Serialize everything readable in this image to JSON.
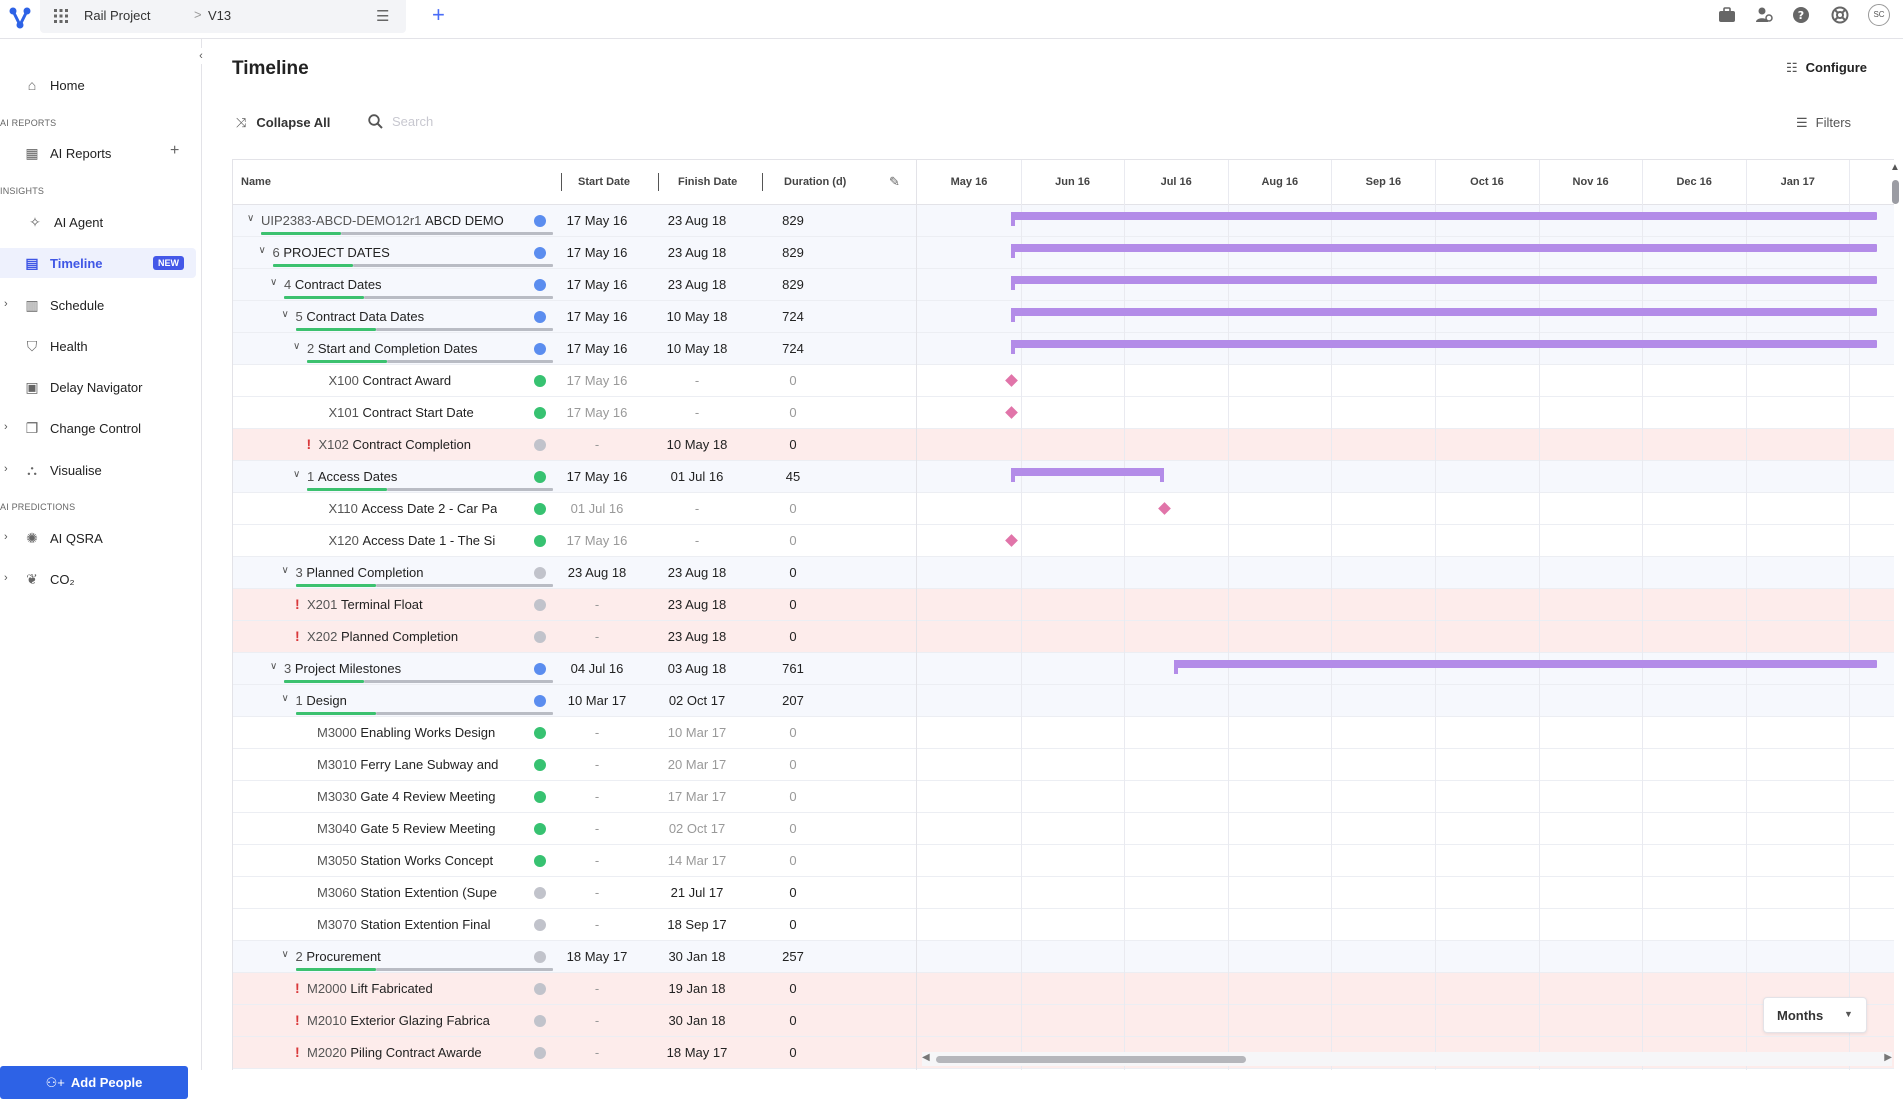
{
  "topbar": {
    "project_name": "Rail Project",
    "breadcrumb_sep": ">",
    "version": "V13",
    "avatar_initials": "SC",
    "icons": [
      "briefcase-icon",
      "user-settings-icon",
      "help-icon",
      "support-icon"
    ]
  },
  "sidebar": {
    "items": [
      {
        "label": "Home",
        "icon": "home-icon"
      },
      {
        "section": "AI REPORTS"
      },
      {
        "label": "AI Reports",
        "icon": "report-icon"
      },
      {
        "section": "INSIGHTS"
      },
      {
        "label": "AI Agent",
        "icon": "agent-icon"
      },
      {
        "label": "Timeline",
        "icon": "timeline-icon",
        "badge": "NEW",
        "active": true
      },
      {
        "label": "Schedule",
        "icon": "schedule-icon"
      },
      {
        "label": "Health",
        "icon": "shield-icon"
      },
      {
        "label": "Delay Navigator",
        "icon": "calendar-icon"
      },
      {
        "label": "Change Control",
        "icon": "copy-icon"
      },
      {
        "label": "Visualise",
        "icon": "network-icon"
      },
      {
        "section": "AI PREDICTIONS"
      },
      {
        "label": "AI QSRA",
        "icon": "qsra-icon"
      },
      {
        "label": "CO₂",
        "icon": "leaf-icon"
      }
    ],
    "add_people": "Add People"
  },
  "page": {
    "title": "Timeline",
    "configure": "Configure",
    "collapse_all": "Collapse All",
    "search_placeholder": "Search",
    "filters": "Filters",
    "months_select": "Months"
  },
  "table": {
    "columns": {
      "name": "Name",
      "start": "Start Date",
      "finish": "Finish Date",
      "duration": "Duration (d)"
    },
    "rows": [
      {
        "code": "UIP2383-ABCD-DEMO12r1",
        "name": "ABCD DEMO",
        "start": "17 May 16",
        "finish": "23 Aug 18",
        "duration": "829",
        "level": 0,
        "status": "blue"
      },
      {
        "code": "6",
        "name": "PROJECT DATES",
        "start": "17 May 16",
        "finish": "23 Aug 18",
        "duration": "829",
        "level": 1,
        "status": "blue"
      },
      {
        "code": "4",
        "name": "Contract Dates",
        "start": "17 May 16",
        "finish": "23 Aug 18",
        "duration": "829",
        "level": 2,
        "status": "blue"
      },
      {
        "code": "5",
        "name": "Contract Data Dates",
        "start": "17 May 16",
        "finish": "10 May 18",
        "duration": "724",
        "level": 3,
        "status": "blue"
      },
      {
        "code": "2",
        "name": "Start and Completion Dates",
        "start": "17 May 16",
        "finish": "10 May 18",
        "duration": "724",
        "level": 4,
        "status": "blue"
      },
      {
        "code": "X100",
        "name": "Contract Award",
        "start": "17 May 16",
        "finish": "-",
        "duration": "0",
        "level": 5,
        "status": "green"
      },
      {
        "code": "X101",
        "name": "Contract Start Date",
        "start": "17 May 16",
        "finish": "-",
        "duration": "0",
        "level": 5,
        "status": "green"
      },
      {
        "code": "X102",
        "name": "Contract Completion",
        "start": "-",
        "finish": "10 May 18",
        "duration": "0",
        "level": 5,
        "status": "grey",
        "warning": true
      },
      {
        "code": "1",
        "name": "Access Dates",
        "start": "17 May 16",
        "finish": "01 Jul 16",
        "duration": "45",
        "level": 4,
        "status": "green"
      },
      {
        "code": "X110",
        "name": "Access Date 2 - Car Pa",
        "start": "01 Jul 16",
        "finish": "-",
        "duration": "0",
        "level": 5,
        "status": "green"
      },
      {
        "code": "X120",
        "name": "Access Date 1 - The Si",
        "start": "17 May 16",
        "finish": "-",
        "duration": "0",
        "level": 5,
        "status": "green"
      },
      {
        "code": "3",
        "name": "Planned Completion",
        "start": "23 Aug 18",
        "finish": "23 Aug 18",
        "duration": "0",
        "level": 3,
        "status": "grey"
      },
      {
        "code": "X201",
        "name": "Terminal Float",
        "start": "-",
        "finish": "23 Aug 18",
        "duration": "0",
        "level": 4,
        "status": "grey",
        "warning": true
      },
      {
        "code": "X202",
        "name": "Planned Completion",
        "start": "-",
        "finish": "23 Aug 18",
        "duration": "0",
        "level": 4,
        "status": "grey",
        "warning": true
      },
      {
        "code": "3",
        "name": "Project Milestones",
        "start": "04 Jul 16",
        "finish": "03 Aug 18",
        "duration": "761",
        "level": 2,
        "status": "blue"
      },
      {
        "code": "1",
        "name": "Design",
        "start": "10 Mar 17",
        "finish": "02 Oct 17",
        "duration": "207",
        "level": 3,
        "status": "blue"
      },
      {
        "code": "M3000",
        "name": "Enabling Works Design",
        "start": "-",
        "finish": "10 Mar 17",
        "duration": "0",
        "level": 4,
        "status": "green"
      },
      {
        "code": "M3010",
        "name": "Ferry Lane Subway and",
        "start": "-",
        "finish": "20 Mar 17",
        "duration": "0",
        "level": 4,
        "status": "green"
      },
      {
        "code": "M3030",
        "name": "Gate 4 Review Meeting",
        "start": "-",
        "finish": "17 Mar 17",
        "duration": "0",
        "level": 4,
        "status": "green"
      },
      {
        "code": "M3040",
        "name": "Gate 5 Review Meeting",
        "start": "-",
        "finish": "02 Oct 17",
        "duration": "0",
        "level": 4,
        "status": "green"
      },
      {
        "code": "M3050",
        "name": "Station Works Concept",
        "start": "-",
        "finish": "14 Mar 17",
        "duration": "0",
        "level": 4,
        "status": "green"
      },
      {
        "code": "M3060",
        "name": "Station Extention (Supe",
        "start": "-",
        "finish": "21 Jul 17",
        "duration": "0",
        "level": 4,
        "status": "grey"
      },
      {
        "code": "M3070",
        "name": "Station Extention Final",
        "start": "-",
        "finish": "18 Sep 17",
        "duration": "0",
        "level": 4,
        "status": "grey"
      },
      {
        "code": "2",
        "name": "Procurement",
        "start": "18 May 17",
        "finish": "30 Jan 18",
        "duration": "257",
        "level": 3,
        "status": "grey"
      },
      {
        "code": "M2000",
        "name": "Lift Fabricated",
        "start": "-",
        "finish": "19 Jan 18",
        "duration": "0",
        "level": 4,
        "status": "grey",
        "warning": true
      },
      {
        "code": "M2010",
        "name": "Exterior Glazing Fabrica",
        "start": "-",
        "finish": "30 Jan 18",
        "duration": "0",
        "level": 4,
        "status": "grey",
        "warning": true
      },
      {
        "code": "M2020",
        "name": "Piling Contract Awarde",
        "start": "-",
        "finish": "18 May 17",
        "duration": "0",
        "level": 4,
        "status": "grey",
        "warning": true
      }
    ]
  },
  "gantt": {
    "months": [
      "May 16",
      "Jun 16",
      "Jul 16",
      "Aug 16",
      "Sep 16",
      "Oct 16",
      "Nov 16",
      "Dec 16",
      "Jan 17"
    ],
    "bar_color": "#b38ce8",
    "milestone_color": "#e174a9"
  },
  "colors": {
    "accent": "#3f56e5",
    "warning_row": "#fdeceb",
    "summary_row": "#f6f8fd",
    "status_blue": "#5b8def",
    "status_green": "#37c271",
    "status_grey": "#c1c3cb"
  }
}
